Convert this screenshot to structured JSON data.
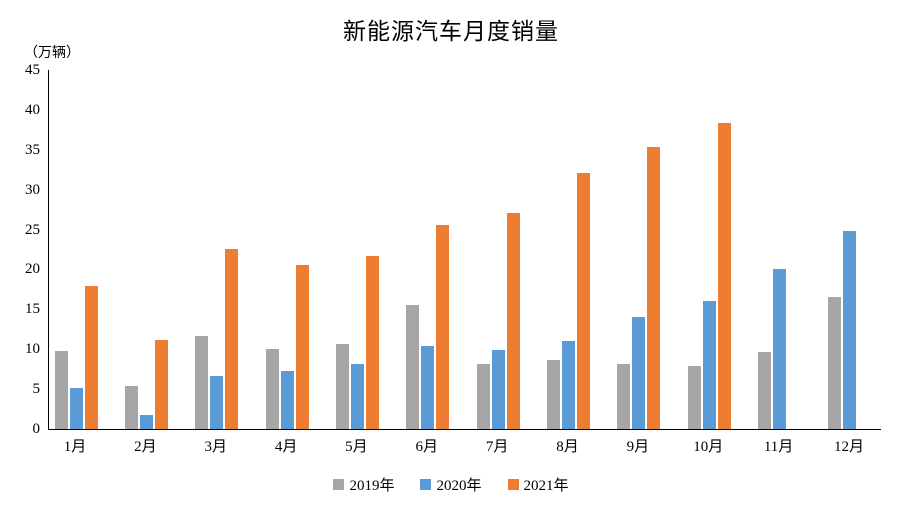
{
  "title": "新能源汽车月度销量",
  "y_axis_unit": "（万辆）",
  "chart_data": {
    "type": "bar",
    "title": "新能源汽车月度销量",
    "xlabel": "",
    "ylabel": "万辆",
    "ylim": [
      0,
      45
    ],
    "y_tick_step": 5,
    "y_ticks": [
      0,
      5,
      10,
      15,
      20,
      25,
      30,
      35,
      40,
      45
    ],
    "grid": false,
    "legend_position": "bottom",
    "categories": [
      "1月",
      "2月",
      "3月",
      "4月",
      "5月",
      "6月",
      "7月",
      "8月",
      "9月",
      "10月",
      "11月",
      "12月"
    ],
    "series": [
      {
        "name": "2019年",
        "color": "#a6a6a6",
        "values": [
          9.8,
          5.4,
          11.6,
          10.0,
          10.7,
          15.6,
          8.2,
          8.7,
          8.2,
          7.9,
          9.7,
          16.5
        ]
      },
      {
        "name": "2020年",
        "color": "#5b9bd5",
        "values": [
          5.2,
          1.7,
          6.6,
          7.3,
          8.2,
          10.4,
          9.9,
          11.0,
          14.0,
          16.1,
          20.0,
          24.8
        ]
      },
      {
        "name": "2021年",
        "color": "#ed7d31",
        "values": [
          17.9,
          11.1,
          22.6,
          20.6,
          21.7,
          25.6,
          27.1,
          32.1,
          35.4,
          38.4,
          null,
          null
        ]
      }
    ]
  }
}
